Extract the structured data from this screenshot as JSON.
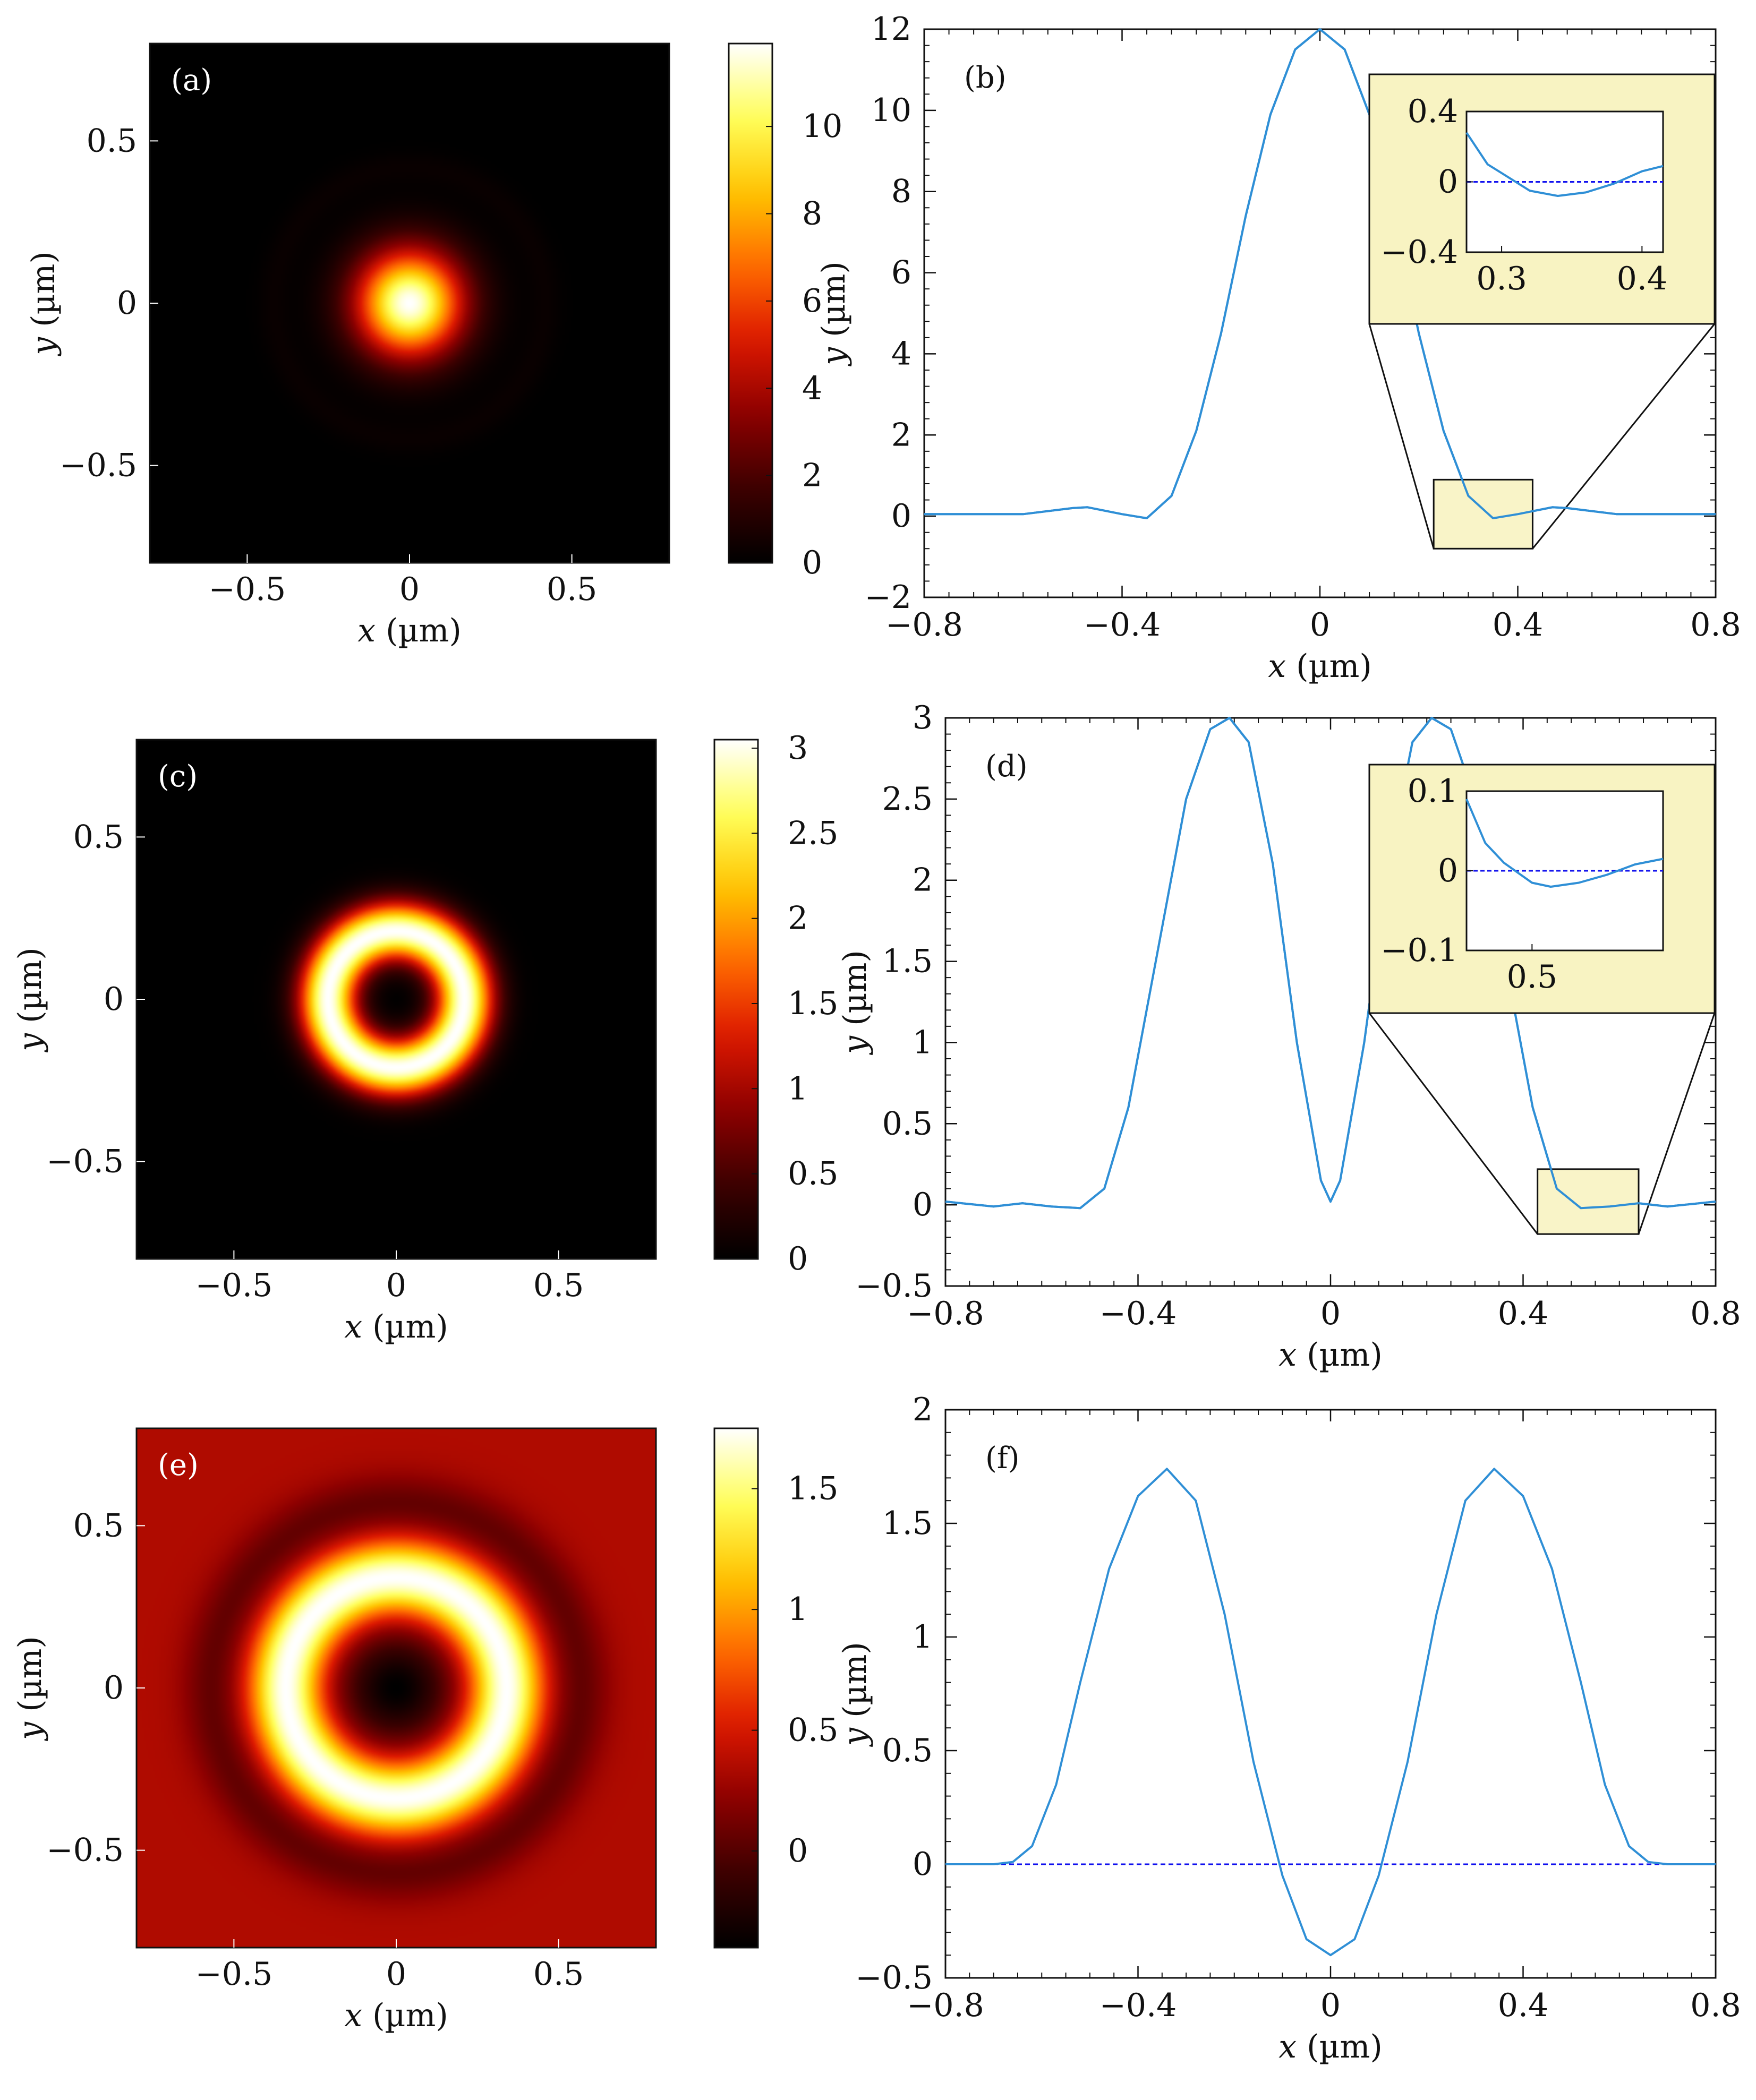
{
  "colors": {
    "curve": "#2f8fd6",
    "zero_line": "#1010ee",
    "inset_fill": "#f8f3c2",
    "axes": "#111111",
    "colormap": [
      "#000000",
      "#3c0000",
      "#8c0000",
      "#dc1800",
      "#ff6a00",
      "#ffc400",
      "#ffff5a",
      "#ffffff"
    ]
  },
  "icons": {
    "heatmap": "heat-colormap-image"
  },
  "chart_data": [
    {
      "id": "a",
      "tag": "(a)",
      "type": "heatmap",
      "pattern": "spot",
      "ring_radius": 0,
      "width": 0.115,
      "background": 0.0,
      "xlim": [
        -0.8,
        0.8
      ],
      "ylim": [
        -0.8,
        0.8
      ],
      "xticks": [
        -0.5,
        0,
        0.5
      ],
      "xtick_labels": [
        "−0.5",
        "0",
        "0.5"
      ],
      "yticks": [
        0.5,
        0,
        -0.5
      ],
      "ytick_labels": [
        "0.5",
        "0",
        "−0.5"
      ],
      "xlabel_var": "x",
      "xlabel_unit": " (µm)",
      "ylabel_var": "y",
      "ylabel_unit": " (µm)",
      "colorbar": {
        "min": 0,
        "max": 11.9,
        "ticks": [
          0,
          2,
          4,
          6,
          8,
          10
        ],
        "tick_labels": [
          "0",
          "2",
          "4",
          "6",
          "8",
          "10"
        ]
      }
    },
    {
      "id": "b",
      "type": "line",
      "tag": "(b)",
      "xlim": [
        -0.8,
        0.8
      ],
      "ylim": [
        -2,
        12
      ],
      "xticks": [
        -0.8,
        -0.4,
        0,
        0.4,
        0.8
      ],
      "xtick_labels": [
        "−0.8",
        "−0.4",
        "0",
        "0.4",
        "0.8"
      ],
      "yticks": [
        -2,
        0,
        2,
        4,
        6,
        8,
        10,
        12
      ],
      "ytick_labels": [
        "−2",
        "0",
        "2",
        "4",
        "6",
        "8",
        "10",
        "12"
      ],
      "xlabel_var": "x",
      "xlabel_unit": " (µm)",
      "ylabel_var": "y",
      "ylabel_unit": " (µm)",
      "zero_line": false,
      "series": [
        {
          "name": "profile",
          "x": [
            -0.8,
            -0.6,
            -0.5,
            -0.47,
            -0.4,
            -0.35,
            -0.3,
            -0.25,
            -0.2,
            -0.15,
            -0.1,
            -0.05,
            0,
            0.05,
            0.1,
            0.15,
            0.2,
            0.25,
            0.3,
            0.35,
            0.4,
            0.47,
            0.5,
            0.6,
            0.8
          ],
          "y": [
            0.05,
            0.05,
            0.2,
            0.22,
            0.05,
            -0.05,
            0.5,
            2.1,
            4.5,
            7.4,
            9.9,
            11.5,
            12.0,
            11.5,
            9.9,
            7.4,
            4.5,
            2.1,
            0.5,
            -0.05,
            0.05,
            0.22,
            0.2,
            0.05,
            0.05
          ]
        }
      ],
      "zoom_box": {
        "xlim": [
          0.23,
          0.43
        ],
        "ylim": [
          -0.8,
          0.9
        ]
      },
      "inset": {
        "xlim": [
          0.275,
          0.415
        ],
        "ylim": [
          -0.4,
          0.4
        ],
        "xticks": [
          0.3,
          0.4
        ],
        "xtick_labels": [
          "0.3",
          "0.4"
        ],
        "yticks": [
          0.4,
          0,
          -0.4
        ],
        "ytick_labels": [
          "0.4",
          "0",
          "−0.4"
        ],
        "zero_line": true,
        "x": [
          0.275,
          0.29,
          0.3,
          0.32,
          0.34,
          0.36,
          0.38,
          0.4,
          0.415
        ],
        "y": [
          0.28,
          0.1,
          0.05,
          -0.05,
          -0.08,
          -0.06,
          -0.01,
          0.06,
          0.09
        ]
      }
    },
    {
      "id": "c",
      "tag": "(c)",
      "type": "heatmap",
      "pattern": "ring",
      "ring_radius": 0.21,
      "width": 0.09,
      "background": 0.0,
      "xlim": [
        -0.8,
        0.8
      ],
      "ylim": [
        -0.8,
        0.8
      ],
      "xticks": [
        -0.5,
        0,
        0.5
      ],
      "xtick_labels": [
        "−0.5",
        "0",
        "0.5"
      ],
      "yticks": [
        0.5,
        0,
        -0.5
      ],
      "ytick_labels": [
        "0.5",
        "0",
        "−0.5"
      ],
      "xlabel_var": "x",
      "xlabel_unit": " (µm)",
      "ylabel_var": "y",
      "ylabel_unit": " (µm)",
      "colorbar": {
        "min": 0,
        "max": 3.05,
        "ticks": [
          0,
          0.5,
          1,
          1.5,
          2,
          2.5,
          3
        ],
        "tick_labels": [
          "0",
          "0.5",
          "1",
          "1.5",
          "2",
          "2.5",
          "3"
        ]
      }
    },
    {
      "id": "d",
      "type": "line",
      "tag": "(d)",
      "xlim": [
        -0.8,
        0.8
      ],
      "ylim": [
        -0.5,
        3
      ],
      "xticks": [
        -0.8,
        -0.4,
        0,
        0.4,
        0.8
      ],
      "xtick_labels": [
        "−0.8",
        "−0.4",
        "0",
        "0.4",
        "0.8"
      ],
      "yticks": [
        -0.5,
        0,
        0.5,
        1,
        1.5,
        2,
        2.5,
        3
      ],
      "ytick_labels": [
        "−0.5",
        "0",
        "0.5",
        "1",
        "1.5",
        "2",
        "2.5",
        "3"
      ],
      "xlabel_var": "x",
      "xlabel_unit": " (µm)",
      "ylabel_var": "y",
      "ylabel_unit": " (µm)",
      "zero_line": false,
      "series": [
        {
          "name": "profile",
          "x": [
            -0.8,
            -0.7,
            -0.64,
            -0.58,
            -0.52,
            -0.47,
            -0.42,
            -0.36,
            -0.3,
            -0.25,
            -0.21,
            -0.17,
            -0.12,
            -0.07,
            -0.02,
            0,
            0.02,
            0.07,
            0.12,
            0.17,
            0.21,
            0.25,
            0.3,
            0.36,
            0.42,
            0.47,
            0.52,
            0.58,
            0.64,
            0.7,
            0.8
          ],
          "y": [
            0.02,
            -0.01,
            0.01,
            -0.01,
            -0.02,
            0.1,
            0.6,
            1.55,
            2.5,
            2.93,
            3.0,
            2.85,
            2.1,
            1.0,
            0.15,
            0.02,
            0.15,
            1.0,
            2.1,
            2.85,
            3.0,
            2.93,
            2.5,
            1.55,
            0.6,
            0.1,
            -0.02,
            -0.01,
            0.01,
            -0.01,
            0.02
          ]
        }
      ],
      "zoom_box": {
        "xlim": [
          0.43,
          0.64
        ],
        "ylim": [
          -0.18,
          0.22
        ]
      },
      "inset": {
        "xlim": [
          0.43,
          0.64
        ],
        "ylim": [
          -0.1,
          0.1
        ],
        "xticks": [
          0.5
        ],
        "xtick_labels": [
          "0.5"
        ],
        "yticks": [
          0.1,
          0,
          -0.1
        ],
        "ytick_labels": [
          "0.1",
          "0",
          "−0.1"
        ],
        "zero_line": true,
        "x": [
          0.43,
          0.45,
          0.47,
          0.5,
          0.52,
          0.55,
          0.58,
          0.61,
          0.64
        ],
        "y": [
          0.09,
          0.035,
          0.01,
          -0.015,
          -0.02,
          -0.015,
          -0.005,
          0.008,
          0.015
        ]
      }
    },
    {
      "id": "e",
      "tag": "(e)",
      "type": "heatmap",
      "pattern": "ring",
      "ring_radius": 0.34,
      "width": 0.12,
      "background": 0.0,
      "xlim": [
        -0.8,
        0.8
      ],
      "ylim": [
        -0.8,
        0.8
      ],
      "xticks": [
        -0.5,
        0,
        0.5
      ],
      "xtick_labels": [
        "−0.5",
        "0",
        "0.5"
      ],
      "yticks": [
        0.5,
        0,
        -0.5
      ],
      "ytick_labels": [
        "0.5",
        "0",
        "−0.5"
      ],
      "xlabel_var": "x",
      "xlabel_unit": " (µm)",
      "ylabel_var": "y",
      "ylabel_unit": " (µm)",
      "colorbar": {
        "min": -0.4,
        "max": 1.75,
        "ticks": [
          0,
          0.5,
          1,
          1.5
        ],
        "tick_labels": [
          "0",
          "0.5",
          "1",
          "1.5"
        ]
      }
    },
    {
      "id": "f",
      "type": "line",
      "tag": "(f)",
      "xlim": [
        -0.8,
        0.8
      ],
      "ylim": [
        -0.5,
        2
      ],
      "xticks": [
        -0.8,
        -0.4,
        0,
        0.4,
        0.8
      ],
      "xtick_labels": [
        "−0.8",
        "−0.4",
        "0",
        "0.4",
        "0.8"
      ],
      "yticks": [
        -0.5,
        0,
        0.5,
        1,
        1.5,
        2
      ],
      "ytick_labels": [
        "−0.5",
        "0",
        "0.5",
        "1",
        "1.5",
        "2"
      ],
      "xlabel_var": "x",
      "xlabel_unit": " (µm)",
      "ylabel_var": "y",
      "ylabel_unit": " (µm)",
      "zero_line": true,
      "series": [
        {
          "name": "profile",
          "x": [
            -0.8,
            -0.7,
            -0.66,
            -0.62,
            -0.57,
            -0.52,
            -0.46,
            -0.4,
            -0.34,
            -0.28,
            -0.22,
            -0.16,
            -0.1,
            -0.05,
            0,
            0.05,
            0.1,
            0.16,
            0.22,
            0.28,
            0.34,
            0.4,
            0.46,
            0.52,
            0.57,
            0.62,
            0.66,
            0.7,
            0.8
          ],
          "y": [
            0.0,
            0.0,
            0.01,
            0.08,
            0.35,
            0.8,
            1.3,
            1.62,
            1.74,
            1.6,
            1.1,
            0.45,
            -0.05,
            -0.33,
            -0.4,
            -0.33,
            -0.05,
            0.45,
            1.1,
            1.6,
            1.74,
            1.62,
            1.3,
            0.8,
            0.35,
            0.08,
            0.01,
            0.0,
            0.0
          ]
        }
      ],
      "zoom_box": null,
      "inset": null
    }
  ]
}
